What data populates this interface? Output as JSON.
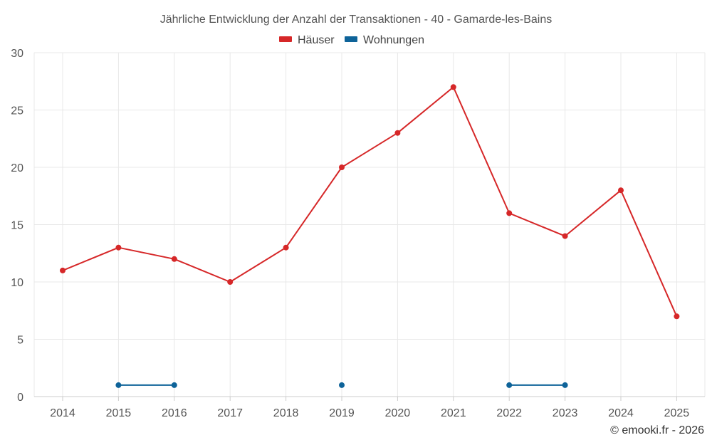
{
  "chart_data": {
    "type": "line",
    "title": "Jährliche Entwicklung der Anzahl der Transaktionen - 40 - Gamarde-les-Bains",
    "categories": [
      "2014",
      "2015",
      "2016",
      "2017",
      "2018",
      "2019",
      "2020",
      "2021",
      "2022",
      "2023",
      "2024",
      "2025"
    ],
    "ylim": [
      0,
      30
    ],
    "yticks": [
      "0",
      "5",
      "10",
      "15",
      "20",
      "25",
      "30"
    ],
    "grid": true,
    "legend_position": "top-center",
    "series": [
      {
        "name": "Häuser",
        "color": "#d62728",
        "values": [
          11,
          13,
          12,
          10,
          13,
          20,
          23,
          27,
          16,
          14,
          18,
          7
        ]
      },
      {
        "name": "Wohnungen",
        "color": "#0e6399",
        "values": [
          null,
          1,
          1,
          null,
          null,
          1,
          null,
          null,
          1,
          1,
          null,
          null
        ]
      }
    ]
  },
  "credit": "© emooki.fr - 2026"
}
